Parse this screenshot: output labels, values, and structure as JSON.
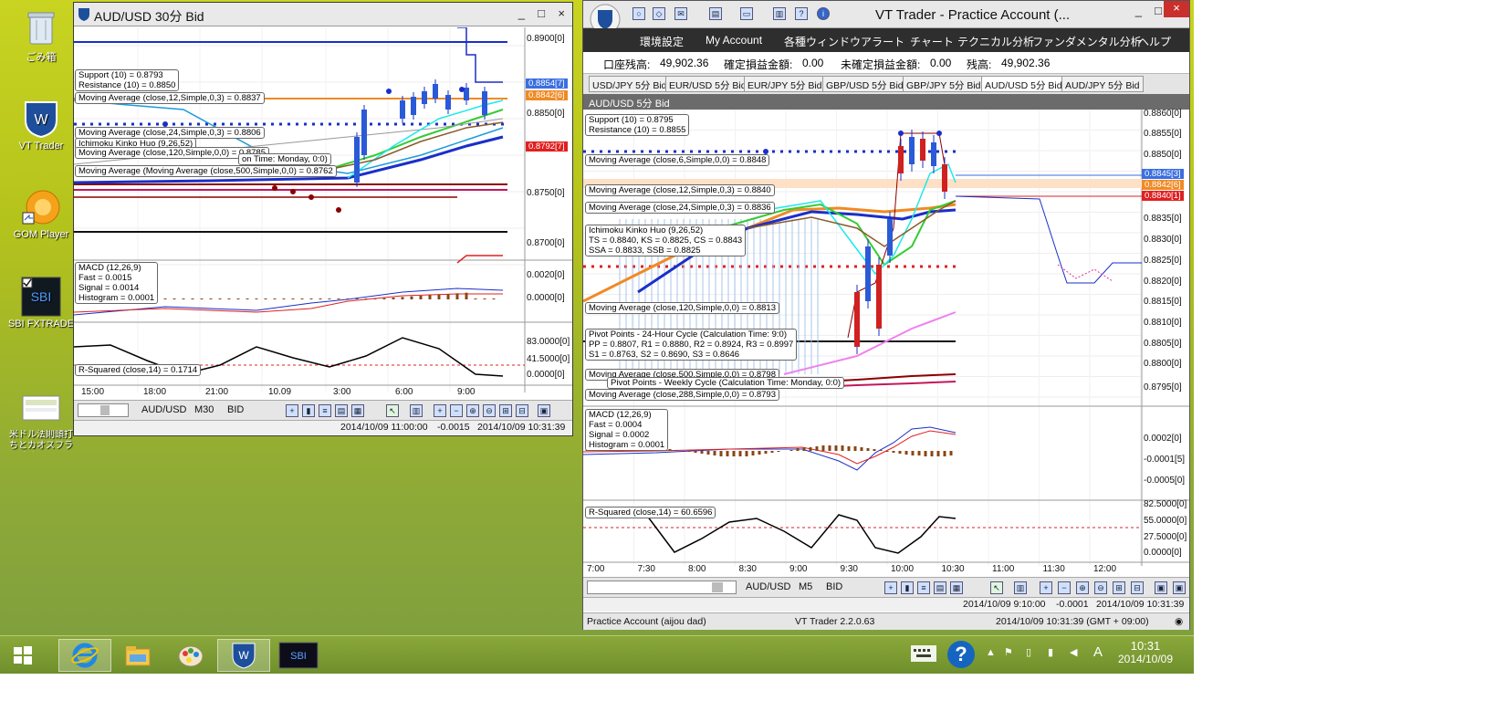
{
  "desktop": {
    "icons": [
      {
        "label": "ごみ箱",
        "icon": "recycle-bin-icon"
      },
      {
        "label": "VT Trader",
        "icon": "vt-trader-icon"
      },
      {
        "label": "GOM Player",
        "icon": "gom-player-icon"
      },
      {
        "label": "SBI FXTRADE",
        "icon": "sbi-fxtrade-icon"
      },
      {
        "label": "米ドル法則頭打ちとカオスフラクタル.jpg",
        "icon": "image-file-icon"
      }
    ]
  },
  "left_window": {
    "title": "AUD/USD 30分 Bid",
    "buttons": [
      "_",
      "□",
      "×"
    ],
    "price_axis": [
      "0.8900[0]",
      "0.8850[0]",
      "0.8750[0]",
      "0.8700[0]"
    ],
    "price_labels": [
      {
        "text": "0.8854[7]",
        "color": "#3a6fe0"
      },
      {
        "text": "0.8842[6]",
        "color": "#f08a24"
      },
      {
        "text": "0.8792[7]",
        "color": "#e02020"
      }
    ],
    "indicators": [
      "Support (10) = 0.8793",
      "Resistance (10) = 0.8850",
      "Moving Average (close,12,Simple,0,3) = 0.8837",
      "Moving Average (close,24,Simple,0,3) = 0.8806",
      "Moving Average (close,120,Simple,0,0) = 0.8785",
      "Moving Average (Moving Average (close,500,Simple,0,0) = 0.8762",
      "Ichimoku Kinko Huo (9,26,52)",
      "on Time: Monday, 0:0)"
    ],
    "macd": [
      "MACD (12,26,9)",
      "Fast = 0.0015",
      "Signal = 0.0014",
      "Histogram = 0.0001"
    ],
    "macd_axis": [
      "0.0020[0]",
      "0.0000[0]"
    ],
    "rsq": "R-Squared (close,14) = 0.1714",
    "rsq_axis": [
      "83.0000[0]",
      "41.5000[0]",
      "0.0000[0]"
    ],
    "times": [
      "15:00",
      "18:00",
      "21:00",
      "10.09",
      "3:00",
      "6:00",
      "9:00"
    ],
    "toolbar": {
      "symbol": "AUD/USD",
      "timeframe": "M30",
      "side": "BID"
    },
    "status": {
      "left": "2014/10/09 11:00:00",
      "mid": "-0.0015",
      "right": "2014/10/09 10:31:39"
    }
  },
  "right_window": {
    "title": "VT Trader - Practice Account (...",
    "buttons": [
      "_",
      "□",
      "×"
    ],
    "menu": [
      "環境設定",
      "My Account",
      "各種ウィンドウ",
      "アラート",
      "チャート",
      "テクニカル分析",
      "ファンダメンタル分析",
      "ヘルプ"
    ],
    "account": {
      "balance_label": "口座残高:",
      "balance": "49,902.36",
      "realized_label": "確定損益金額:",
      "realized": "0.00",
      "unrealized_label": "未確定損益金額:",
      "unrealized": "0.00",
      "equity_label": "残高:",
      "equity": "49,902.36"
    },
    "tabs": [
      "USD/JPY 5分 Bid",
      "EUR/USD 5分 Bid",
      "EUR/JPY 5分 Bid",
      "GBP/USD 5分 Bid",
      "GBP/JPY 5分 Bid",
      "AUD/USD 5分 Bid",
      "AUD/JPY 5分 Bid"
    ],
    "chart_title": "AUD/USD 5分 Bid",
    "price_axis": [
      "0.8860[0]",
      "0.8855[0]",
      "0.8850[0]",
      "0.8835[0]",
      "0.8830[0]",
      "0.8825[0]",
      "0.8820[0]",
      "0.8815[0]",
      "0.8810[0]",
      "0.8805[0]",
      "0.8800[0]",
      "0.8795[0]"
    ],
    "price_labels": [
      {
        "text": "0.8845[3]",
        "color": "#3a6fe0"
      },
      {
        "text": "0.8842[6]",
        "color": "#f08a24"
      },
      {
        "text": "0.8840[1]",
        "color": "#e02020"
      }
    ],
    "indicators": [
      "Support (10) = 0.8795",
      "Resistance (10) = 0.8855",
      "Moving Average (close,6,Simple,0,0) = 0.8848",
      "Moving Average (close,12,Simple,0,3) = 0.8840",
      "Moving Average (close,24,Simple,0,3) = 0.8836",
      "Ichimoku Kinko Huo (9,26,52)",
      "TS = 0.8840, KS = 0.8825, CS = 0.8843",
      "SSA = 0.8833, SSB = 0.8825",
      "Moving Average (close,120,Simple,0,0) = 0.8813",
      "Pivot Points - 24-Hour Cycle (Calculation Time: 9:0)",
      "PP = 0.8807, R1 = 0.8880, R2 = 0.8924, R3 = 0.8997",
      "S1 = 0.8763, S2 = 0.8690, S3 = 0.8646",
      "Moving Average (close,500,Simple,0,0) = 0.8798",
      "Pivot Points - Weekly Cycle (Calculation Time: Monday, 0:0)",
      "Moving Average (close,288,Simple,0,0) = 0.8793"
    ],
    "macd": [
      "MACD (12,26,9)",
      "Fast = 0.0004",
      "Signal = 0.0002",
      "Histogram = 0.0001"
    ],
    "macd_axis": [
      "0.0002[0]",
      "-0.0001[5]",
      "-0.0005[0]"
    ],
    "rsq": "R-Squared (close,14) = 60.6596",
    "rsq_axis": [
      "82.5000[0]",
      "55.0000[0]",
      "27.5000[0]",
      "0.0000[0]"
    ],
    "times": [
      "7:00",
      "7:30",
      "8:00",
      "8:30",
      "9:00",
      "9:30",
      "10:00",
      "10:30",
      "11:00",
      "11:30",
      "12:00"
    ],
    "toolbar": {
      "symbol": "AUD/USD",
      "timeframe": "M5",
      "side": "BID"
    },
    "status1": {
      "left": "2014/10/09 9:10:00",
      "mid": "-0.0001",
      "right": "2014/10/09 10:31:39"
    },
    "status2": {
      "account": "Practice Account (aijou dad)",
      "version": "VT Trader 2.2.0.63",
      "time": "2014/10/09 10:31:39 (GMT + 09:00)"
    }
  },
  "taskbar": {
    "time": "10:31",
    "date": "2014/10/09",
    "ime": "A",
    "apps": [
      "start-icon",
      "ie-icon",
      "explorer-icon",
      "paint-icon",
      "vt-trader-icon",
      "sbi-fxtrade-icon"
    ]
  }
}
